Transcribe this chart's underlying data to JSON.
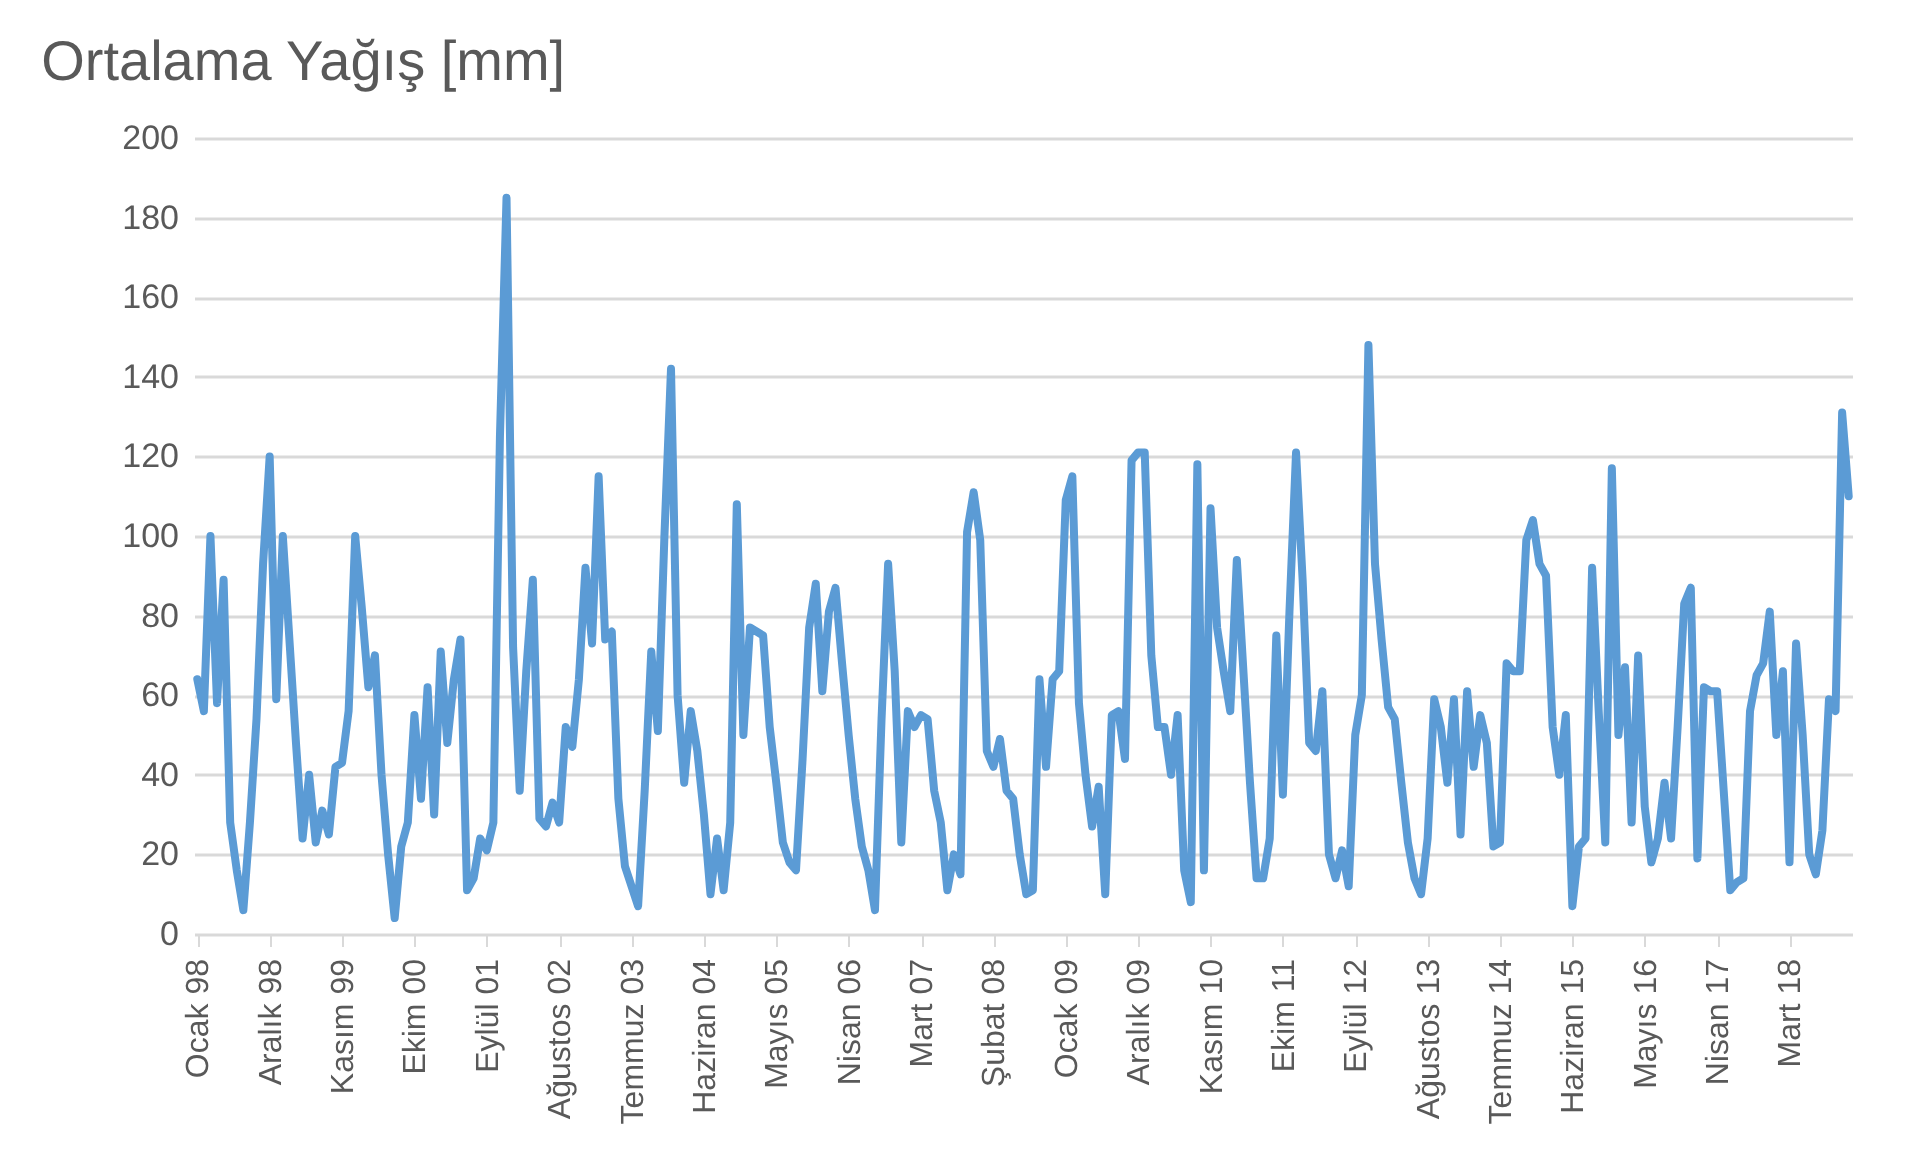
{
  "chart_data": {
    "type": "line",
    "title": "Ortalama Yağış [mm]",
    "categories": [
      "Ocak 98",
      null,
      null,
      null,
      null,
      null,
      null,
      null,
      null,
      null,
      null,
      "Aralık 98",
      null,
      null,
      null,
      null,
      null,
      null,
      null,
      null,
      null,
      null,
      "Kasım 99",
      null,
      null,
      null,
      null,
      null,
      null,
      null,
      null,
      null,
      null,
      "Ekim 00",
      null,
      null,
      null,
      null,
      null,
      null,
      null,
      null,
      null,
      null,
      "Eylül 01",
      null,
      null,
      null,
      null,
      null,
      null,
      null,
      null,
      null,
      null,
      "Ağustos 02",
      null,
      null,
      null,
      null,
      null,
      null,
      null,
      null,
      null,
      null,
      "Temmuz 03",
      null,
      null,
      null,
      null,
      null,
      null,
      null,
      null,
      null,
      null,
      "Haziran 04",
      null,
      null,
      null,
      null,
      null,
      null,
      null,
      null,
      null,
      null,
      "Mayıs 05",
      null,
      null,
      null,
      null,
      null,
      null,
      null,
      null,
      null,
      null,
      "Nisan 06",
      null,
      null,
      null,
      null,
      null,
      null,
      null,
      null,
      null,
      null,
      "Mart 07",
      null,
      null,
      null,
      null,
      null,
      null,
      null,
      null,
      null,
      null,
      "Şubat 08",
      null,
      null,
      null,
      null,
      null,
      null,
      null,
      null,
      null,
      null,
      "Ocak 09",
      null,
      null,
      null,
      null,
      null,
      null,
      null,
      null,
      null,
      null,
      "Aralık 09",
      null,
      null,
      null,
      null,
      null,
      null,
      null,
      null,
      null,
      null,
      "Kasım 10",
      null,
      null,
      null,
      null,
      null,
      null,
      null,
      null,
      null,
      null,
      "Ekim 11",
      null,
      null,
      null,
      null,
      null,
      null,
      null,
      null,
      null,
      null,
      "Eylül 12",
      null,
      null,
      null,
      null,
      null,
      null,
      null,
      null,
      null,
      null,
      "Ağustos 13",
      null,
      null,
      null,
      null,
      null,
      null,
      null,
      null,
      null,
      null,
      "Temmuz 14",
      null,
      null,
      null,
      null,
      null,
      null,
      null,
      null,
      null,
      null,
      "Haziran 15",
      null,
      null,
      null,
      null,
      null,
      null,
      null,
      null,
      null,
      null,
      "Mayıs 16",
      null,
      null,
      null,
      null,
      null,
      null,
      null,
      null,
      null,
      null,
      "Nisan 17",
      null,
      null,
      null,
      null,
      null,
      null,
      null,
      null,
      null,
      null,
      "Mart 18",
      null,
      null,
      null,
      null,
      null,
      null,
      null,
      null,
      null
    ],
    "series": [
      {
        "color": "#5b9bd5",
        "values": [
          64,
          56,
          100,
          58,
          89,
          28,
          16,
          6,
          28,
          54,
          93,
          120,
          59,
          100,
          74,
          48,
          24,
          40,
          23,
          31,
          25,
          42,
          43,
          56,
          100,
          82,
          62,
          70,
          40,
          20,
          4,
          22,
          28,
          55,
          34,
          62,
          30,
          71,
          48,
          64,
          74,
          11,
          14,
          24,
          21,
          28,
          125,
          185,
          72,
          36,
          66,
          89,
          29,
          27,
          33,
          28,
          52,
          47,
          64,
          92,
          73,
          115,
          74,
          76,
          34,
          17,
          12,
          7,
          36,
          71,
          51,
          100,
          142,
          60,
          38,
          56,
          46,
          30,
          10,
          24,
          11,
          28,
          108,
          50,
          77,
          76,
          75,
          52,
          38,
          23,
          18,
          16,
          44,
          77,
          88,
          61,
          81,
          87,
          68,
          50,
          34,
          22,
          16,
          6,
          54,
          93,
          66,
          23,
          56,
          52,
          55,
          54,
          36,
          28,
          11,
          20,
          15,
          101,
          111,
          99,
          46,
          42,
          49,
          36,
          34,
          20,
          10,
          11,
          64,
          42,
          64,
          66,
          109,
          115,
          58,
          40,
          27,
          37,
          10,
          55,
          56,
          44,
          119,
          121,
          121,
          70,
          52,
          52,
          40,
          55,
          16,
          8,
          118,
          16,
          107,
          77,
          66,
          56,
          94,
          66,
          38,
          14,
          14,
          24,
          75,
          35,
          81,
          121,
          89,
          48,
          46,
          61,
          20,
          14,
          21,
          12,
          50,
          60,
          148,
          93,
          74,
          57,
          54,
          38,
          23,
          14,
          10,
          24,
          59,
          52,
          38,
          59,
          25,
          61,
          42,
          55,
          48,
          22,
          23,
          68,
          66,
          66,
          99,
          104,
          93,
          90,
          52,
          40,
          55,
          7,
          22,
          24,
          92,
          56,
          23,
          117,
          50,
          67,
          28,
          70,
          32,
          18,
          24,
          38,
          24,
          52,
          83,
          87,
          19,
          62,
          61,
          61,
          36,
          11,
          13,
          14,
          56,
          65,
          68,
          81,
          50,
          66,
          18,
          73,
          50,
          20,
          15,
          26,
          59,
          56,
          131,
          110
        ]
      }
    ],
    "ylim": [
      0,
      200
    ],
    "yticks": [
      0,
      20,
      40,
      60,
      80,
      100,
      120,
      140,
      160,
      180,
      200
    ],
    "grid": "y",
    "marker": "none",
    "line_style": "solid"
  }
}
